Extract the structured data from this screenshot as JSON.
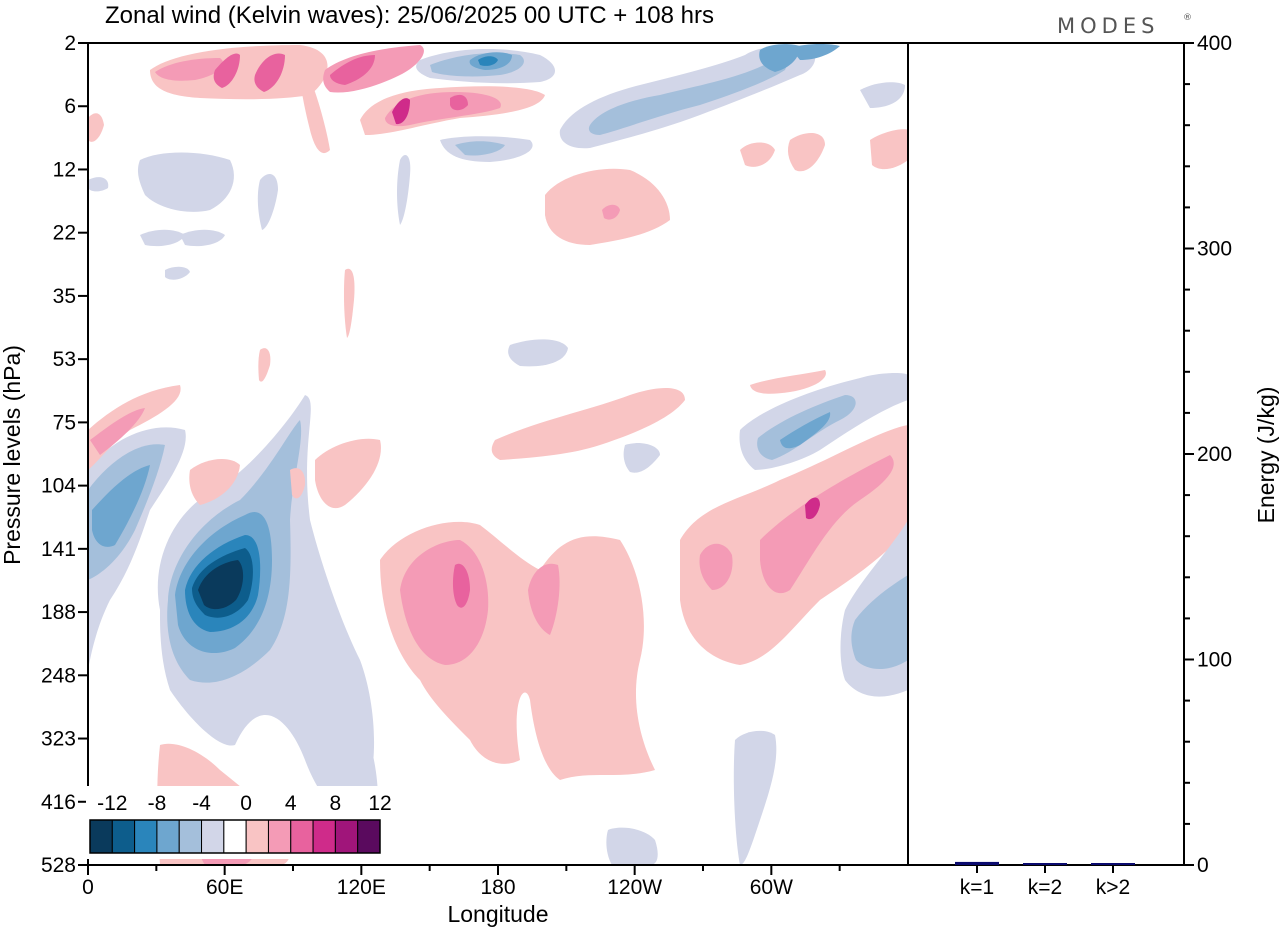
{
  "chart_data": [
    {
      "type": "heatmap",
      "title": "Zonal wind (Kelvin waves):  25/06/2025  00 UTC  + 108 hrs",
      "xlabel": "Longitude",
      "ylabel": "Pressure levels (hPa)",
      "x_ticks": [
        "0",
        "60E",
        "120E",
        "180",
        "120W",
        "60W"
      ],
      "x_range": [
        0,
        360
      ],
      "y_ticks": [
        "2",
        "6",
        "12",
        "22",
        "35",
        "53",
        "75",
        "104",
        "141",
        "188",
        "248",
        "323",
        "416",
        "528"
      ],
      "y_axis": "pressure levels, top 2 hPa to bottom 528 hPa",
      "colorbar": {
        "labels": [
          "-12",
          "-8",
          "-4",
          "0",
          "4",
          "8",
          "12"
        ],
        "colors": [
          "#0a3a5c",
          "#0d5d8c",
          "#2a85bb",
          "#6ea6cf",
          "#a4bfdb",
          "#d2d6e8",
          "#ffffff",
          "#f9c4c4",
          "#f49bb6",
          "#e8629e",
          "#cf2b8a",
          "#a0157a",
          "#5a0a5e"
        ]
      },
      "features": [
        {
          "lon": 58,
          "level": "141-188",
          "value": -12
        },
        {
          "lon": 165,
          "level": "141-188",
          "value": 8
        },
        {
          "lon": 320,
          "level": "104-141",
          "value": 8
        },
        {
          "lon": 165,
          "level": "6",
          "value": 8
        },
        {
          "lon": 175,
          "level": "2-6",
          "value": -8
        },
        {
          "lon": 305,
          "level": "75-104",
          "value": -8
        },
        {
          "lon": 232,
          "level": "12-22",
          "value": 4
        },
        {
          "lon": 218,
          "level": "75",
          "value": 4
        },
        {
          "lon": 15,
          "level": "75-104",
          "value": 4
        }
      ]
    },
    {
      "type": "bar",
      "ylabel": "Energy (J/kg)",
      "categories": [
        "k=1",
        "k=2",
        "k>2"
      ],
      "values": [
        1.5,
        0.5,
        0.5
      ],
      "ylim": [
        0,
        400
      ],
      "y_ticks": [
        "0",
        "100",
        "200",
        "300",
        "400"
      ],
      "bar_color": "#0a0a6e"
    }
  ],
  "brand": "MODES",
  "brand_mark": "®"
}
